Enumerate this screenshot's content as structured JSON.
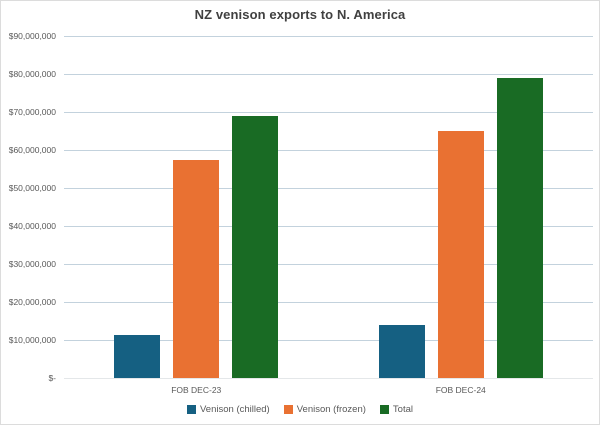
{
  "chart": {
    "title": "NZ venison exports to N. America"
  },
  "chart_data": {
    "type": "bar",
    "title": "NZ venison exports to N. America",
    "categories": [
      "FOB DEC-23",
      "FOB DEC-24"
    ],
    "series": [
      {
        "name": "Venison (chilled)",
        "color": "#156082",
        "values": [
          11400000,
          14000000
        ]
      },
      {
        "name": "Venison (frozen)",
        "color": "#E97132",
        "values": [
          57500000,
          65000000
        ]
      },
      {
        "name": "Total",
        "color": "#196B24",
        "values": [
          68900000,
          79000000
        ]
      }
    ],
    "xlabel": "",
    "ylabel": "",
    "ylim": [
      0,
      90000000
    ],
    "grid": true,
    "legend_position": "bottom",
    "yticks": [
      {
        "value": 0,
        "label": "$-"
      },
      {
        "value": 10000000,
        "label": "$10,000,000"
      },
      {
        "value": 20000000,
        "label": "$20,000,000"
      },
      {
        "value": 30000000,
        "label": "$30,000,000"
      },
      {
        "value": 40000000,
        "label": "$40,000,000"
      },
      {
        "value": 50000000,
        "label": "$50,000,000"
      },
      {
        "value": 60000000,
        "label": "$60,000,000"
      },
      {
        "value": 70000000,
        "label": "$70,000,000"
      },
      {
        "value": 80000000,
        "label": "$80,000,000"
      },
      {
        "value": 90000000,
        "label": "$90,000,000"
      }
    ]
  }
}
